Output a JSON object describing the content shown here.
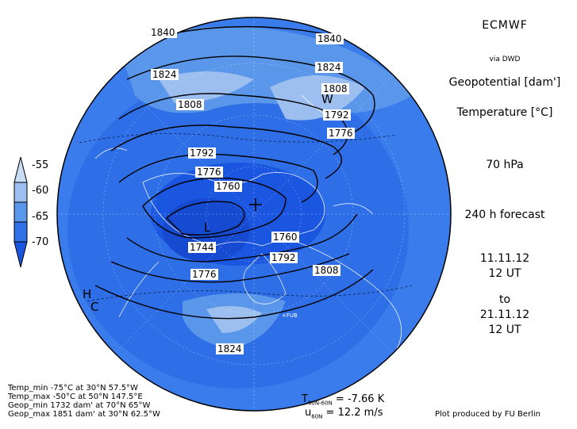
{
  "header": {
    "title": "ECMWF",
    "source": "via DWD",
    "var1": "Geopotential [dam']",
    "var2": "Temperature [°C]",
    "level": "70 hPa",
    "forecast": "240 h forecast",
    "init_date": "11.11.12",
    "init_time": "12 UT",
    "to_label": "to",
    "valid_date": "21.11.12",
    "valid_time": "12 UT"
  },
  "legend": {
    "ticks": [
      "-55",
      "-60",
      "-65",
      "-70"
    ],
    "colors": [
      "#c8dcf5",
      "#9cbff0",
      "#5a96ea",
      "#3070e8",
      "#1a56e0"
    ]
  },
  "contour_labels": {
    "l1840a": "1840",
    "l1840b": "1840",
    "l1824a": "1824",
    "l1824b": "1824",
    "l1824c": "1824",
    "l1808a": "1808",
    "l1808b": "1808",
    "l1808c": "1808",
    "l1792a": "1792",
    "l1792b": "1792",
    "l1792c": "1792",
    "l1776a": "1776",
    "l1776b": "1776",
    "l1776c": "1776",
    "l1760a": "1760",
    "l1760b": "1760",
    "l1744": "1744"
  },
  "markers": {
    "high": "H",
    "cold": "C",
    "warm": "W",
    "low": "L",
    "fub": "+FUB"
  },
  "stats": {
    "temp_min": "Temp_min -75°C at 30°N 57.5°W",
    "temp_max": "Temp_max -50°C at 50°N 147.5°E",
    "geop_min": "Geop_min 1732 dam' at 70°N 65°W",
    "geop_max": "Geop_max 1851 dam' at 30°N 62.5°W"
  },
  "means": {
    "t_label": "T",
    "t_sub": "90N-60N",
    "t_value": "= -7.66 K",
    "u_label": "u",
    "u_sub": "60N",
    "u_value": "= 12.2 m/s"
  },
  "credit": "Plot produced by FU Berlin",
  "colors": {
    "background": "#1a56e0",
    "light": "#c8dcf5",
    "mid": "#5a96ea"
  }
}
